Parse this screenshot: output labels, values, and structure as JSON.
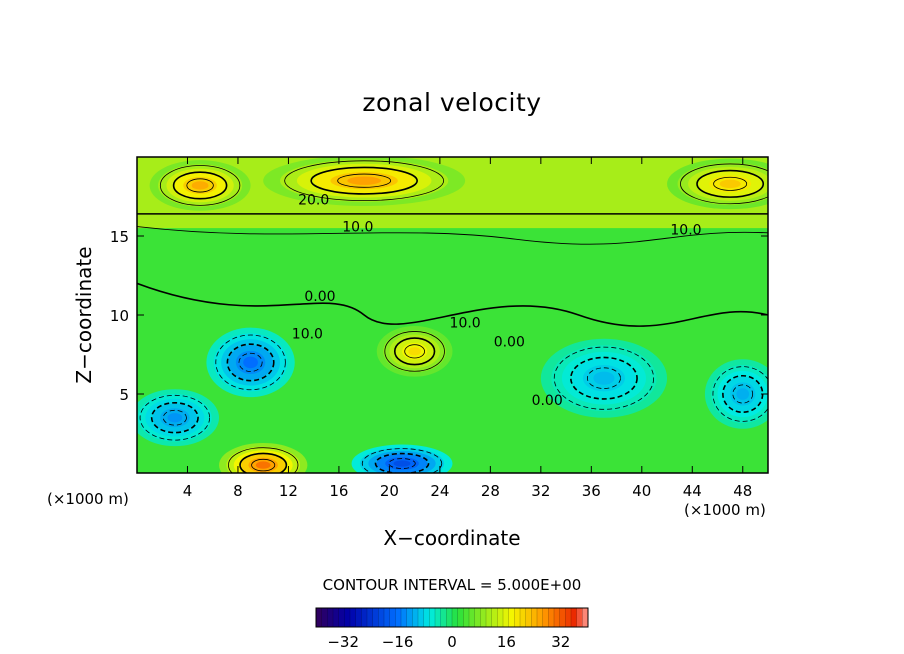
{
  "chart_data": {
    "type": "heatmap",
    "title": "zonal velocity",
    "xlabel": "X−coordinate",
    "ylabel": "Z−coordinate",
    "x_unit": "(×1000 m)",
    "xlim": [
      0,
      50
    ],
    "ylim": [
      0,
      20
    ],
    "x_ticks": [
      4,
      8,
      12,
      16,
      20,
      24,
      28,
      32,
      36,
      40,
      44,
      48
    ],
    "y_ticks": [
      5,
      10,
      15
    ],
    "contour_interval_text": "CONTOUR INTERVAL = 5.000E+00",
    "contour_labels": [
      {
        "text": "20.0",
        "x": 14,
        "z": 17
      },
      {
        "text": "10.0",
        "x": 17.5,
        "z": 15.3
      },
      {
        "text": "10.0",
        "x": 43.5,
        "z": 15.1
      },
      {
        "text": "0.00",
        "x": 14.5,
        "z": 10.9
      },
      {
        "text": "10.0",
        "x": 13.5,
        "z": 8.5
      },
      {
        "text": "10.0",
        "x": 26,
        "z": 9.2
      },
      {
        "text": "0.00",
        "x": 29.5,
        "z": 8
      },
      {
        "text": "0.00",
        "x": 32.5,
        "z": 4.3
      }
    ],
    "features": [
      {
        "kind": "max",
        "x": 18,
        "z": 18.5,
        "value": 26,
        "sx": 8,
        "sz": 1.6
      },
      {
        "kind": "max",
        "x": 5,
        "z": 18.2,
        "value": 25,
        "sx": 4,
        "sz": 1.6
      },
      {
        "kind": "max",
        "x": 47,
        "z": 18.3,
        "value": 22,
        "sx": 5,
        "sz": 1.6
      },
      {
        "kind": "max",
        "x": 22,
        "z": 7.7,
        "value": 20,
        "sx": 3,
        "sz": 1.6
      },
      {
        "kind": "max",
        "x": 10,
        "z": 0.5,
        "value": 30,
        "sx": 3.5,
        "sz": 1.4
      },
      {
        "kind": "min",
        "x": 9,
        "z": 7,
        "value": -16,
        "sx": 3.5,
        "sz": 2.2
      },
      {
        "kind": "min",
        "x": 3,
        "z": 3.5,
        "value": -13,
        "sx": 3.5,
        "sz": 1.8
      },
      {
        "kind": "min",
        "x": 21,
        "z": 0.6,
        "value": -20,
        "sx": 4,
        "sz": 1.2
      },
      {
        "kind": "min",
        "x": 37,
        "z": 6,
        "value": -10,
        "sx": 5,
        "sz": 2.5
      },
      {
        "kind": "min",
        "x": 48,
        "z": 5,
        "value": -11,
        "sx": 3,
        "sz": 2.2
      }
    ],
    "colorbar": {
      "min": -40,
      "max": 40,
      "ticks": [
        -32,
        -16,
        0,
        16,
        32
      ],
      "tick_labels": [
        "−32",
        "−16",
        "0",
        "16",
        "32"
      ]
    },
    "grid": false,
    "legend": "colorbar at bottom center"
  }
}
